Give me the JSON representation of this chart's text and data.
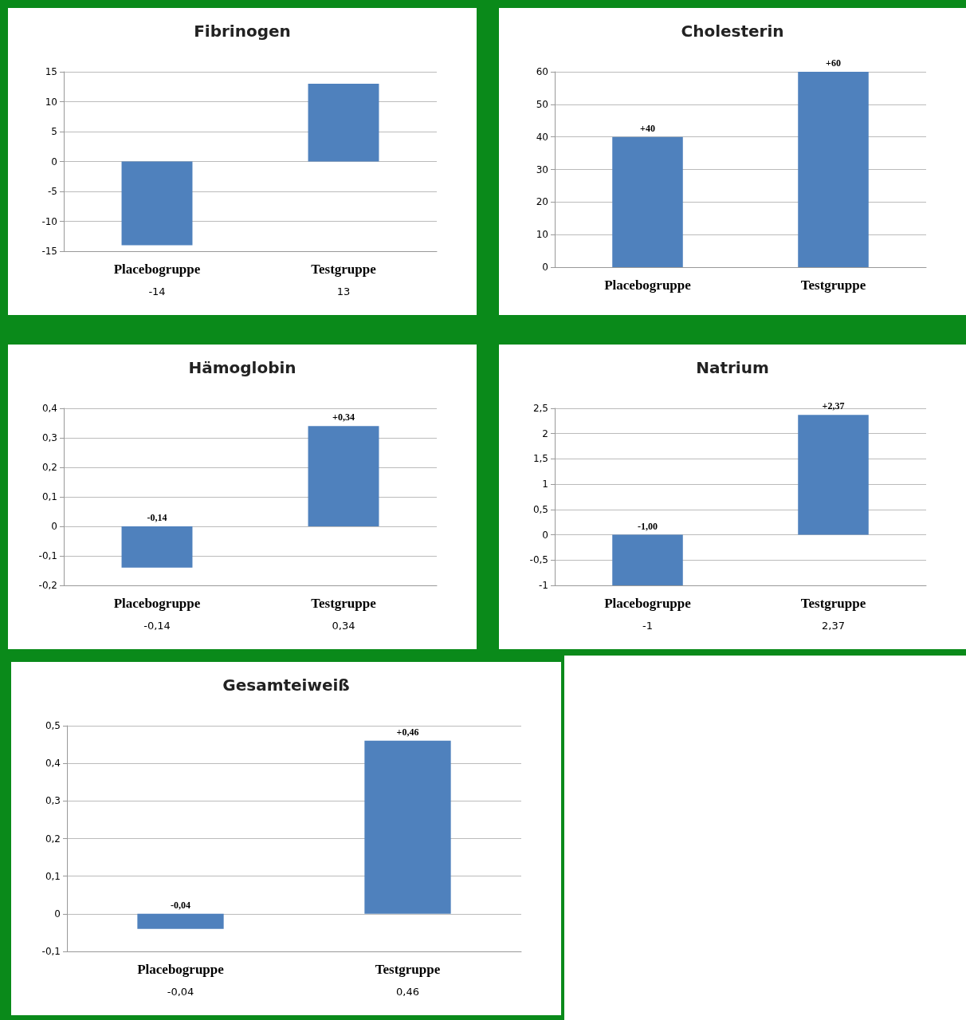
{
  "chart_data": [
    {
      "type": "bar",
      "title": "Fibrinogen",
      "categories": [
        "Placebogruppe",
        "Testgruppe"
      ],
      "values": [
        -14,
        13
      ],
      "color": "#4f81bd",
      "ylim": [
        -15,
        15
      ],
      "yticks": [
        -15,
        -10,
        -5,
        0,
        5,
        10,
        15
      ],
      "grid": "y",
      "annotations": [
        "-14",
        "13"
      ]
    },
    {
      "type": "bar",
      "title": "Cholesterin",
      "categories": [
        "Placebogruppe",
        "Testgruppe"
      ],
      "values": [
        40,
        60
      ],
      "color": "#4f81bd",
      "ylim": [
        0,
        60
      ],
      "yticks": [
        0,
        10,
        20,
        30,
        40,
        50,
        60
      ],
      "grid": "y",
      "value_labels": [
        "+40",
        "+60"
      ]
    },
    {
      "type": "bar",
      "title": "Hämoglobin",
      "categories": [
        "Placebogruppe",
        "Testgruppe"
      ],
      "values": [
        -0.14,
        0.34
      ],
      "color": "#4f81bd",
      "ylim": [
        -0.2,
        0.4
      ],
      "yticks": [
        {
          "value": -0.2,
          "label": "-0,2"
        },
        {
          "value": -0.1,
          "label": "-0,1"
        },
        0,
        {
          "value": 0.1,
          "label": "0,1"
        },
        {
          "value": 0.2,
          "label": "0,2"
        },
        {
          "value": 0.3,
          "label": "0,3"
        },
        {
          "value": 0.4,
          "label": "0,4"
        }
      ],
      "grid": "y",
      "value_labels": [
        "-0,14",
        "+0,34"
      ],
      "annotations": [
        "-0,14",
        "0,34"
      ]
    },
    {
      "type": "bar",
      "title": "Natrium",
      "categories": [
        "Placebogruppe",
        "Testgruppe"
      ],
      "values": [
        -1,
        2.37
      ],
      "color": "#4f81bd",
      "ylim": [
        -1,
        2.5
      ],
      "yticks": [
        -1,
        {
          "value": -0.5,
          "label": "-0,5"
        },
        0,
        {
          "value": 0.5,
          "label": "0,5"
        },
        1,
        {
          "value": 1.5,
          "label": "1,5"
        },
        2,
        {
          "value": 2.5,
          "label": "2,5"
        }
      ],
      "grid": "y",
      "value_labels": [
        "-1,00",
        "+2,37"
      ],
      "annotations": [
        "-1",
        "2,37"
      ]
    },
    {
      "type": "bar",
      "title": "Gesamteiweiß",
      "categories": [
        "Placebogruppe",
        "Testgruppe"
      ],
      "values": [
        -0.04,
        0.46
      ],
      "color": "#4f81bd",
      "ylim": [
        -0.1,
        0.5
      ],
      "yticks": [
        {
          "value": -0.1,
          "label": "-0,1"
        },
        0,
        {
          "value": 0.1,
          "label": "0,1"
        },
        {
          "value": 0.2,
          "label": "0,2"
        },
        {
          "value": 0.3,
          "label": "0,3"
        },
        {
          "value": 0.4,
          "label": "0,4"
        },
        {
          "value": 0.5,
          "label": "0,5"
        }
      ],
      "grid": "y",
      "value_labels": [
        "-0,04",
        "+0,46"
      ],
      "annotations": [
        "-0,04",
        "0,46"
      ]
    }
  ]
}
